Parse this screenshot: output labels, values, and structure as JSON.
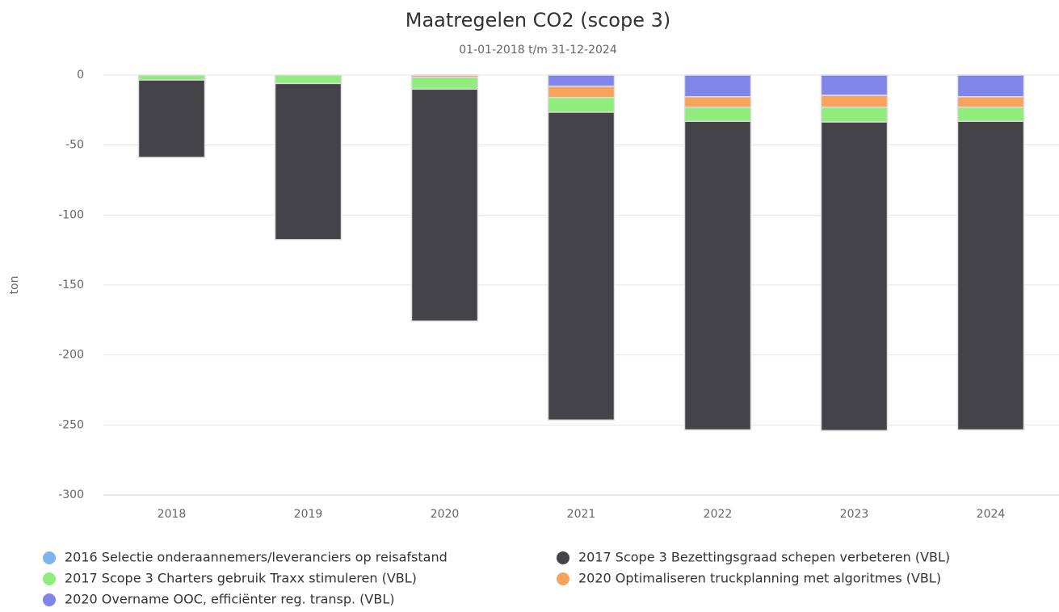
{
  "chart_data": {
    "type": "bar",
    "stacked": true,
    "title": "Maatregelen CO2 (scope 3)",
    "subtitle": "01-01-2018 t/m 31-12-2024",
    "y_label": "ton",
    "categories": [
      "2018",
      "2019",
      "2020",
      "2021",
      "2022",
      "2023",
      "2024"
    ],
    "series": [
      {
        "name": "2016 Selectie onderaannemers/leveranciers op reisafstand",
        "color": "#7cb5ec",
        "values": [
          0,
          0,
          0,
          0,
          0,
          0,
          0
        ]
      },
      {
        "name": "2017 Scope 3 Bezettingsgraad schepen verbeteren (VBL)",
        "color": "#434348",
        "values": [
          -55.3,
          -111.6,
          -165.8,
          -220,
          -220.5,
          -220.5,
          -220.5
        ]
      },
      {
        "name": "2017 Scope 3 Charters gebruik Traxx stimuleren (VBL)",
        "color": "#90ed7d",
        "values": [
          -3.5,
          -6,
          -8.5,
          -10.5,
          -10,
          -10.5,
          -10
        ]
      },
      {
        "name": "2020 Optimaliseren truckplanning met algoritmes (VBL)",
        "color": "#f7a35c",
        "values": [
          0,
          0,
          -1.5,
          -8,
          -7.5,
          -8.5,
          -7.5
        ]
      },
      {
        "name": "2020 Overname OOC, efficiënter reg. transp. (VBL)",
        "color": "#8085e9",
        "values": [
          0,
          0,
          0,
          -8,
          -15.5,
          -14.5,
          -15.5
        ]
      }
    ],
    "ylim": [
      -300,
      0
    ],
    "yticks": [
      0,
      -50,
      -100,
      -150,
      -200,
      -250,
      -300
    ],
    "grid": true
  }
}
